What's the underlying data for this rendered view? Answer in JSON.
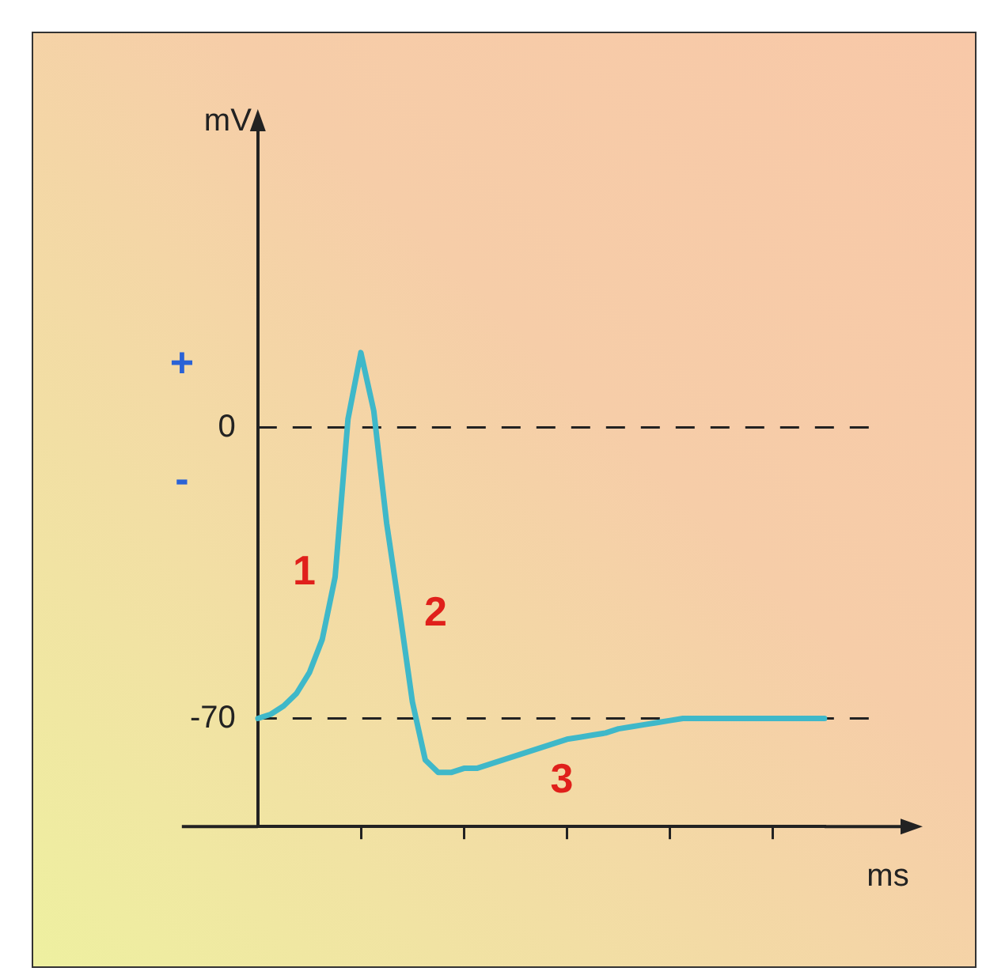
{
  "chart_data": {
    "type": "line",
    "xlabel": "ms",
    "ylabel": "mV",
    "categories": [
      null,
      null,
      null,
      null,
      null,
      null,
      null,
      null,
      null,
      null,
      null,
      null,
      null,
      null,
      null,
      null,
      null,
      null,
      null,
      null,
      null,
      null,
      null,
      null,
      null,
      null,
      null,
      null,
      null,
      null,
      null,
      null,
      null,
      null,
      null,
      null,
      null,
      null,
      null,
      null,
      null,
      null,
      null,
      null,
      null
    ],
    "series": [
      {
        "color": "#3fb8c9",
        "values": [
          -70,
          -69,
          -67,
          -64,
          -59,
          -51,
          -36,
          2,
          18,
          4,
          -23,
          -44,
          -66,
          -80,
          -83,
          -83,
          -82,
          -82,
          -81,
          -80,
          -79,
          -78,
          -77,
          -76,
          -75,
          -74.5,
          -74,
          -73.5,
          -72.5,
          -72,
          -71.5,
          -71,
          -70.5,
          -70,
          -70,
          -70,
          -70,
          -70,
          -70,
          -70,
          -70,
          -70,
          -70,
          -70,
          -70
        ]
      }
    ],
    "ylim": [
      -96,
      72
    ],
    "yticks": [
      -70,
      0
    ],
    "ref_lines": [
      {
        "axis": "y",
        "value": 0,
        "line_style": "dashed",
        "color": "#222222"
      },
      {
        "axis": "y",
        "value": -70,
        "line_style": "dashed",
        "color": "#222222"
      }
    ],
    "annotations": [
      "+",
      "-",
      "1",
      "2",
      "3"
    ],
    "grid": false,
    "legend": false,
    "marker": "none",
    "line_style": "solid",
    "tick_labels": "y"
  }
}
